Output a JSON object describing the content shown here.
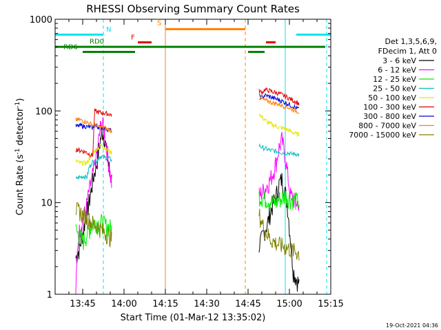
{
  "chart_data": {
    "type": "line",
    "title": "RHESSI Observing Summary Count Rates",
    "xlabel": "Start Time (01-Mar-12 13:35:02)",
    "ylabel_main": "Count Rate (s",
    "ylabel_sup1": "-1",
    "ylabel_mid": " detector",
    "ylabel_sup2": "-1",
    "ylabel_end": ")",
    "x_range_min": [
      0,
      100
    ],
    "y_scale": "log",
    "ylim": [
      1,
      1000
    ],
    "x_ticks": [
      {
        "v": 10,
        "label": "13:45"
      },
      {
        "v": 25,
        "label": "14:00"
      },
      {
        "v": 40,
        "label": "14:15"
      },
      {
        "v": 55,
        "label": "14:30"
      },
      {
        "v": 70,
        "label": "14:45"
      },
      {
        "v": 85,
        "label": "15:00"
      },
      {
        "v": 100,
        "label": "15:15"
      }
    ],
    "y_ticks": [
      {
        "v": 1,
        "label": "1"
      },
      {
        "v": 10,
        "label": "10"
      },
      {
        "v": 100,
        "label": "100"
      },
      {
        "v": 1000,
        "label": "1000"
      }
    ],
    "legend_header": [
      "Det 1,3,5,6,9,",
      "FDecim 1, Att 0"
    ],
    "series": [
      {
        "name": "3 - 6 keV",
        "color": "#000000",
        "seg1": [
          2.5,
          2.8,
          3.2,
          4,
          5,
          6.5,
          8,
          10,
          13,
          17,
          22,
          26,
          35,
          48,
          60,
          55,
          40,
          28,
          22,
          18
        ],
        "seg2": [
          3.5,
          4,
          5,
          6,
          8,
          10,
          12,
          16,
          18,
          14,
          9,
          4,
          1.8,
          1.5,
          1.3
        ]
      },
      {
        "name": "6 - 12 keV",
        "color": "#ff00ff",
        "seg1": [
          1.0,
          3.5,
          5,
          6,
          7,
          8,
          10,
          13,
          16,
          20,
          25,
          32,
          45,
          65,
          75,
          60,
          45,
          32,
          22,
          16
        ],
        "seg2": [
          12,
          13,
          14,
          16,
          18,
          22,
          28,
          40,
          48,
          35,
          20,
          12,
          11,
          10,
          10
        ]
      },
      {
        "name": "12 - 25 keV",
        "color": "#00ee00",
        "seg1": [
          5.0,
          4.6,
          4.3,
          4.0,
          3.8,
          4.2,
          4.5,
          5.0,
          5.5,
          5.8,
          6.0,
          6.2,
          6.0,
          6.2,
          6.0,
          5.8,
          5.6,
          5.5,
          5.4,
          5.2
        ],
        "seg2": [
          12,
          11.5,
          11,
          11,
          10.5,
          10,
          10,
          11,
          11,
          12,
          11.5,
          11,
          11,
          10.5,
          10
        ]
      },
      {
        "name": "25 - 50 keV",
        "color": "#00c0c0",
        "seg1": [
          18,
          18.5,
          19,
          19,
          19.5,
          19,
          19,
          24,
          26,
          28,
          28,
          29,
          30,
          32,
          32,
          31,
          31,
          31,
          30,
          29
        ],
        "seg2": [
          42,
          40,
          39,
          38,
          37,
          37,
          36,
          36,
          35,
          35,
          35,
          34,
          34,
          34,
          33
        ]
      },
      {
        "name": "50 - 100 keV",
        "color": "#e6e600",
        "seg1": [
          28,
          28,
          27,
          27,
          27,
          27,
          27,
          30,
          32,
          35,
          37,
          38,
          40,
          42,
          42,
          40,
          38,
          37,
          36,
          35
        ],
        "seg2": [
          95,
          85,
          80,
          75,
          72,
          70,
          68,
          66,
          65,
          64,
          62,
          60,
          58,
          56,
          55
        ]
      },
      {
        "name": "100 - 300 keV",
        "color": "#e00000",
        "seg1": [
          38,
          38,
          37,
          37,
          36,
          36,
          35,
          34,
          33,
          33,
          100,
          98,
          97,
          96,
          95,
          95,
          94,
          93,
          92,
          91
        ],
        "seg2": [
          165,
          160,
          170,
          168,
          165,
          160,
          158,
          155,
          150,
          145,
          140,
          135,
          130,
          125,
          120
        ]
      },
      {
        "name": "300 - 800 keV",
        "color": "#0000dd",
        "seg1": [
          68,
          68,
          69,
          69,
          68,
          68,
          67,
          67,
          66,
          65,
          70,
          68,
          67,
          66,
          66,
          65,
          64,
          63,
          62,
          61
        ],
        "seg2": [
          145,
          140,
          148,
          145,
          142,
          138,
          135,
          132,
          128,
          124,
          120,
          116,
          112,
          108,
          105
        ]
      },
      {
        "name": "800 - 7000 keV",
        "color": "#ff8000",
        "seg1": [
          80,
          80,
          80,
          79,
          78,
          77,
          75,
          73,
          72,
          70,
          70,
          69,
          68,
          67,
          66,
          65,
          64,
          63,
          62,
          60
        ],
        "seg2": [
          140,
          135,
          130,
          128,
          125,
          122,
          120,
          118,
          115,
          112,
          110,
          106,
          103,
          100,
          98
        ]
      },
      {
        "name": "7000 - 15000 keV",
        "color": "#808000",
        "seg1": [
          8.5,
          8.2,
          8.0,
          7.6,
          7.2,
          7.0,
          6.8,
          6.5,
          6.2,
          6.0,
          5.8,
          5.6,
          5.4,
          5.2,
          5.0,
          4.8,
          4.6,
          4.4,
          4.2,
          4.0
        ],
        "seg2": [
          7.5,
          6,
          5,
          4.5,
          4,
          3.8,
          3.6,
          3.5,
          3.4,
          3.3,
          3.2,
          3.1,
          3.0,
          2.9,
          2.8
        ]
      }
    ],
    "observation_segments": {
      "seg1_time_min": [
        7.5,
        20.5
      ],
      "seg2_time_min": [
        74,
        88.5
      ]
    },
    "state_bars": {
      "night": {
        "label": "N",
        "color": "#00e5ee",
        "level": 680,
        "spans": [
          [
            0,
            17.5
          ],
          [
            87.5,
            100
          ]
        ]
      },
      "flare": {
        "label": "F",
        "color": "#e00000",
        "level": 560,
        "spans": [
          [
            30,
            35
          ],
          [
            76.5,
            80
          ]
        ]
      },
      "saa": {
        "label": "S",
        "color": "#ff8000",
        "level": 780,
        "spans": [
          [
            40,
            69
          ]
        ]
      },
      "rd0": {
        "label": "RD0",
        "color": "#008000",
        "level": 500,
        "spans": [
          [
            0,
            98
          ]
        ]
      },
      "rd6": {
        "label": "RD6",
        "color": "#008000",
        "level": 440,
        "spans": [
          [
            10,
            29
          ],
          [
            70,
            76
          ]
        ]
      }
    },
    "vlines": [
      {
        "t": 0,
        "color": "#00e5ee",
        "style": "solid"
      },
      {
        "t": 17.5,
        "color": "#00e5ee",
        "style": "dashed"
      },
      {
        "t": 40,
        "color": "#ff8000",
        "style": "solid"
      },
      {
        "t": 69,
        "color": "#ff8000",
        "style": "dashed"
      },
      {
        "t": 83.5,
        "color": "#00e5ee",
        "style": "solid"
      },
      {
        "t": 98.5,
        "color": "#00e5ee",
        "style": "dashed"
      }
    ]
  },
  "footer_date": "19-Oct-2021 04:36"
}
